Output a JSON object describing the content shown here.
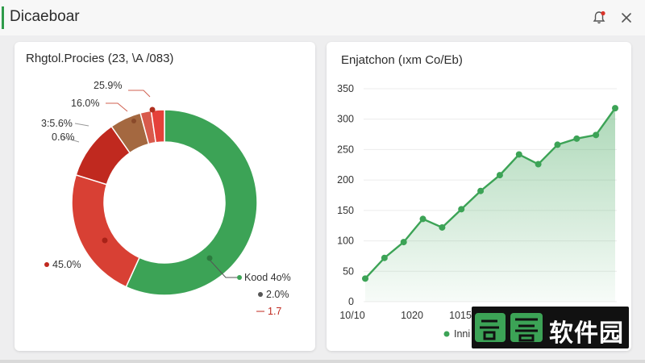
{
  "header": {
    "title": "Dicaeboar"
  },
  "donut_card": {
    "title": "Rhgtol.Procies (23, \\A /083)",
    "labels": {
      "l_259": "25.9%",
      "l_160": "16.0%",
      "l_356": "3:5.6%",
      "l_06": "0.6%",
      "l_450": "45.0%",
      "l_kood": "Kood 4o%",
      "l_20": "2.0%",
      "l_17": "1.7"
    }
  },
  "line_card": {
    "title": "Enjatchon (ıxm Co/Eb)",
    "legend": "Inni"
  },
  "watermark": {
    "text": "软件园"
  },
  "colors": {
    "green": "#3ca356",
    "red": "#d13b30",
    "darkred": "#bf2a22",
    "brown": "#a0683f"
  },
  "chart_data": [
    {
      "type": "pie",
      "title": "Rhgtol.Procies (23, \\A /083)",
      "slices": [
        {
          "label": "Kood 4o%",
          "value": 56.8,
          "color": "#3ca356"
        },
        {
          "label": "45.0%",
          "value": 23.0,
          "color": "#d84034"
        },
        {
          "label": "3:5.6%",
          "value": 10.5,
          "color": "#c0291f"
        },
        {
          "label": "16.0%",
          "value": 5.5,
          "color": "#a46840"
        },
        {
          "label": "25.9%",
          "value": 1.9,
          "color": "#d85a4c"
        },
        {
          "label": "0.6%",
          "value": 2.3,
          "color": "#e5413a"
        }
      ]
    },
    {
      "type": "area",
      "title": "Enjatchon (ıxm Co/Eb)",
      "x_tick_labels": [
        "10/10",
        "1020",
        "1015"
      ],
      "ylim": [
        0,
        350
      ],
      "y_ticks": [
        0,
        50,
        100,
        150,
        200,
        250,
        300,
        350
      ],
      "values": [
        38,
        72,
        98,
        136,
        122,
        152,
        182,
        208,
        242,
        226,
        258,
        268,
        274,
        318
      ],
      "series_color": "#3ca356"
    }
  ]
}
